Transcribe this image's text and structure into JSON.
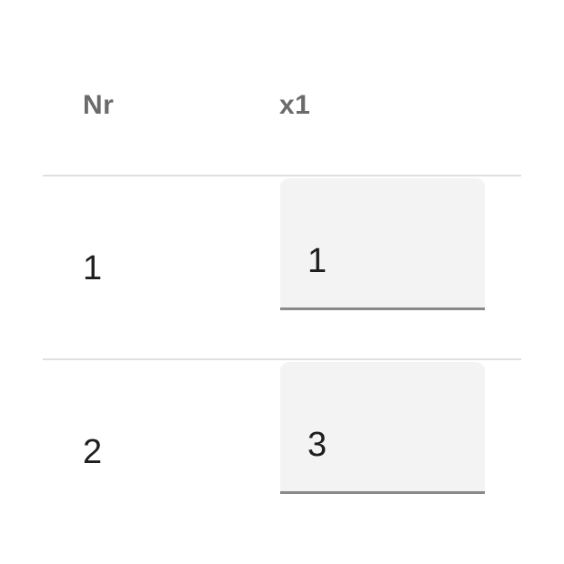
{
  "table": {
    "columns": [
      "Nr",
      "x1"
    ],
    "rows": [
      {
        "nr": "1",
        "x1": "1"
      },
      {
        "nr": "2",
        "x1": "3"
      }
    ]
  }
}
